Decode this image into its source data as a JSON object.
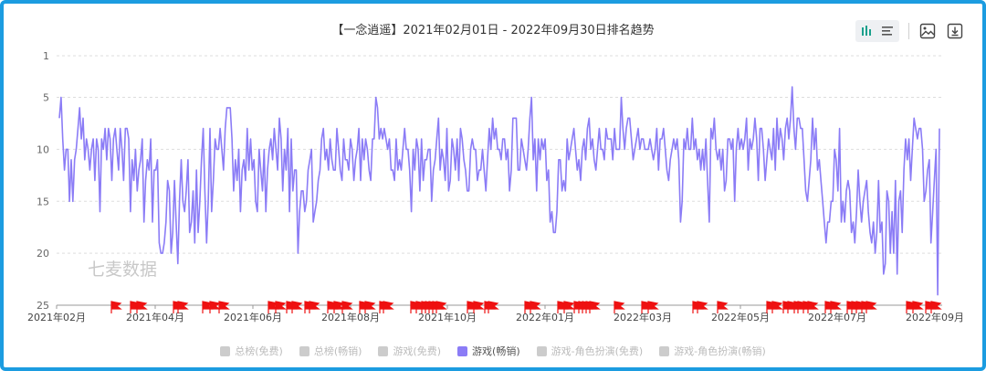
{
  "title": "【一念逍遥】2021年02月01日 - 2022年09月30日排名趋势",
  "watermark": "七麦数据",
  "icons": {
    "bar_chart": "bar-chart-icon",
    "list": "list-icon",
    "image": "image-icon",
    "download": "download-icon"
  },
  "legend": [
    {
      "label": "总榜(免费)",
      "active": false,
      "color": "#cccccc"
    },
    {
      "label": "总榜(畅销)",
      "active": false,
      "color": "#cccccc"
    },
    {
      "label": "游戏(免费)",
      "active": false,
      "color": "#cccccc"
    },
    {
      "label": "游戏(畅销)",
      "active": true,
      "color": "#8b7cf6"
    },
    {
      "label": "游戏-角色扮演(免费)",
      "active": false,
      "color": "#cccccc"
    },
    {
      "label": "游戏-角色扮演(畅销)",
      "active": false,
      "color": "#cccccc"
    }
  ],
  "chart_data": {
    "type": "line",
    "y_axis": {
      "ticks": [
        1,
        5,
        10,
        15,
        20,
        25
      ],
      "inverted": true,
      "range": [
        1,
        25
      ]
    },
    "x_axis": {
      "ticks": [
        "2021年02月",
        "2021年04月",
        "2021年06月",
        "2021年08月",
        "2021年10月",
        "2022年01月",
        "2022年03月",
        "2022年05月",
        "2022年07月",
        "2022年09月"
      ],
      "range": [
        "2021-02-01",
        "2022-09-30"
      ]
    },
    "grid": true,
    "series": [
      {
        "name": "游戏(畅销)",
        "color": "#8b7cf6",
        "values": [
          7,
          5,
          9,
          12,
          10,
          10,
          15,
          11,
          15,
          11,
          10,
          8,
          6,
          9,
          7,
          11,
          9,
          10,
          12,
          10,
          9,
          13,
          9,
          10,
          16,
          9,
          10,
          8,
          11,
          8,
          9,
          13,
          9,
          8,
          10,
          12,
          8,
          10,
          13,
          8,
          8,
          9,
          16,
          11,
          13,
          10,
          14,
          12,
          11,
          9,
          17,
          13,
          11,
          12,
          9,
          17,
          12,
          12,
          11,
          19,
          20,
          20,
          19,
          17,
          13,
          14,
          20,
          18,
          13,
          17,
          21,
          15,
          11,
          15,
          16,
          14,
          11,
          18,
          17,
          14,
          19,
          12,
          18,
          15,
          11,
          8,
          14,
          19,
          15,
          8,
          16,
          13,
          9,
          10,
          10,
          8,
          10,
          12,
          8,
          6,
          6,
          6,
          9,
          14,
          11,
          13,
          10,
          16,
          12,
          11,
          13,
          8,
          12,
          9,
          12,
          11,
          15,
          16,
          10,
          12,
          14,
          10,
          16,
          12,
          10,
          9,
          11,
          8,
          10,
          12,
          7,
          9,
          14,
          10,
          12,
          8,
          16,
          9,
          14,
          12,
          12,
          20,
          16,
          14,
          14,
          16,
          15,
          12,
          11,
          10,
          17,
          16,
          15,
          13,
          12,
          9,
          8,
          11,
          10,
          12,
          9,
          11,
          12,
          12,
          8,
          10,
          12,
          13,
          9,
          11,
          11,
          12,
          9,
          10,
          13,
          11,
          10,
          8,
          13,
          9,
          11,
          9,
          10,
          12,
          13,
          9,
          9,
          5,
          6,
          9,
          8,
          9,
          8,
          9,
          10,
          9,
          12,
          12,
          13,
          9,
          12,
          11,
          12,
          10,
          8,
          10,
          10,
          12,
          16,
          10,
          12,
          9,
          10,
          14,
          9,
          13,
          11,
          11,
          10,
          10,
          15,
          12,
          11,
          9,
          7,
          12,
          10,
          11,
          13,
          8,
          14,
          13,
          9,
          10,
          12,
          9,
          13,
          8,
          9,
          11,
          12,
          14,
          14,
          10,
          9,
          10,
          10,
          13,
          12,
          12,
          10,
          12,
          14,
          11,
          8,
          10,
          7,
          9,
          8,
          10,
          10,
          11,
          9,
          9,
          11,
          10,
          14,
          12,
          7,
          7,
          7,
          12,
          12,
          9,
          10,
          11,
          12,
          10,
          7,
          5,
          11,
          9,
          14,
          9,
          11,
          9,
          10,
          9,
          13,
          12,
          17,
          16,
          18,
          18,
          16,
          11,
          11,
          14,
          13,
          14,
          9,
          11,
          10,
          9,
          8,
          10,
          12,
          11,
          13,
          10,
          9,
          11,
          8,
          7,
          10,
          9,
          11,
          12,
          10,
          8,
          10,
          10,
          11,
          8,
          9,
          9,
          9,
          11,
          8,
          10,
          10,
          10,
          5,
          8,
          10,
          8,
          7,
          7,
          9,
          11,
          10,
          9,
          8,
          10,
          9,
          9,
          10,
          10,
          10,
          9,
          10,
          11,
          10,
          8,
          12,
          9,
          9,
          8,
          10,
          12,
          13,
          11,
          10,
          9,
          10,
          9,
          11,
          17,
          15,
          9,
          10,
          8,
          10,
          10,
          7,
          10,
          9,
          11,
          10,
          12,
          10,
          12,
          9,
          13,
          17,
          8,
          9,
          7,
          10,
          11,
          10,
          12,
          10,
          14,
          13,
          9,
          9,
          10,
          9,
          15,
          10,
          8,
          10,
          9,
          10,
          9,
          7,
          12,
          9,
          10,
          9,
          7,
          9,
          13,
          8,
          8,
          10,
          13,
          11,
          9,
          10,
          11,
          8,
          12,
          7,
          10,
          8,
          9,
          11,
          8,
          7,
          9,
          7,
          4,
          8,
          10,
          7,
          7,
          8,
          8,
          11,
          14,
          15,
          13,
          11,
          7,
          10,
          8,
          12,
          11,
          13,
          15,
          17,
          19,
          17,
          17,
          15,
          15,
          10,
          11,
          14,
          8,
          17,
          15,
          17,
          14,
          13,
          14,
          18,
          17,
          19,
          16,
          12,
          15,
          17,
          15,
          14,
          13,
          16,
          18,
          19,
          17,
          20,
          18,
          13,
          18,
          17,
          22,
          21,
          14,
          15,
          20,
          16,
          20,
          13,
          22,
          15,
          14,
          18,
          12,
          9,
          11,
          9,
          13,
          10,
          7,
          8,
          9,
          8,
          8,
          10,
          15,
          14,
          12,
          11,
          19,
          16,
          13,
          10,
          24,
          8
        ]
      }
    ],
    "markers": {
      "description": "event flags along the x-axis",
      "color": "#e11",
      "count": 49
    }
  }
}
